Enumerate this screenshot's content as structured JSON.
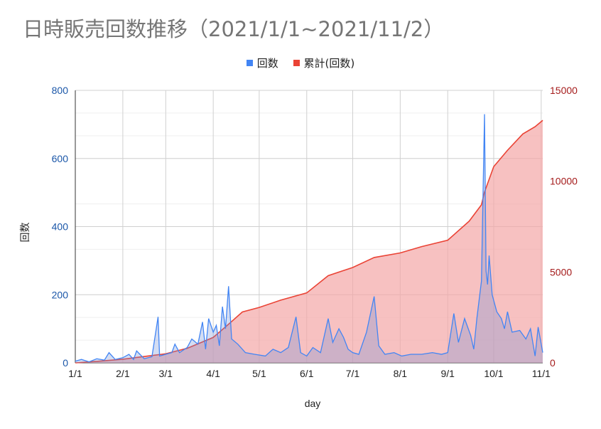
{
  "chart_data": {
    "type": "line",
    "title": "日時販売回数推移（2021/1/1~2021/11/2）",
    "xlabel": "day",
    "ylabel_left": "回数",
    "ylabel_right": "",
    "x_start": "2021-01-01",
    "x_end": "2021-11-02",
    "x_ticks": [
      "1/1",
      "2/1",
      "3/1",
      "4/1",
      "5/1",
      "6/1",
      "7/1",
      "8/1",
      "9/1",
      "10/1",
      "11/1"
    ],
    "ylim_left": [
      0,
      800
    ],
    "yticks_left": [
      "0",
      "200",
      "400",
      "600",
      "800"
    ],
    "ylim_right": [
      0,
      15000
    ],
    "yticks_right": [
      "0",
      "5000",
      "10000",
      "15000"
    ],
    "grid": true,
    "legend_position": "top",
    "series": [
      {
        "name": "回数",
        "axis": "left",
        "type": "line",
        "color": "#4285f4",
        "points": [
          [
            "2021-01-01",
            5
          ],
          [
            "2021-01-05",
            10
          ],
          [
            "2021-01-10",
            3
          ],
          [
            "2021-01-15",
            12
          ],
          [
            "2021-01-20",
            8
          ],
          [
            "2021-01-23",
            30
          ],
          [
            "2021-01-27",
            10
          ],
          [
            "2021-02-01",
            15
          ],
          [
            "2021-02-05",
            25
          ],
          [
            "2021-02-08",
            10
          ],
          [
            "2021-02-10",
            35
          ],
          [
            "2021-02-15",
            12
          ],
          [
            "2021-02-20",
            18
          ],
          [
            "2021-02-24",
            135
          ],
          [
            "2021-02-25",
            20
          ],
          [
            "2021-03-01",
            25
          ],
          [
            "2021-03-05",
            30
          ],
          [
            "2021-03-07",
            55
          ],
          [
            "2021-03-10",
            30
          ],
          [
            "2021-03-15",
            45
          ],
          [
            "2021-03-18",
            70
          ],
          [
            "2021-03-22",
            55
          ],
          [
            "2021-03-25",
            120
          ],
          [
            "2021-03-27",
            40
          ],
          [
            "2021-03-29",
            130
          ],
          [
            "2021-04-01",
            90
          ],
          [
            "2021-04-03",
            110
          ],
          [
            "2021-04-05",
            50
          ],
          [
            "2021-04-07",
            165
          ],
          [
            "2021-04-09",
            100
          ],
          [
            "2021-04-11",
            225
          ],
          [
            "2021-04-13",
            70
          ],
          [
            "2021-04-17",
            55
          ],
          [
            "2021-04-22",
            30
          ],
          [
            "2021-04-28",
            25
          ],
          [
            "2021-05-05",
            20
          ],
          [
            "2021-05-10",
            40
          ],
          [
            "2021-05-15",
            30
          ],
          [
            "2021-05-20",
            45
          ],
          [
            "2021-05-25",
            135
          ],
          [
            "2021-05-28",
            30
          ],
          [
            "2021-06-01",
            20
          ],
          [
            "2021-06-05",
            45
          ],
          [
            "2021-06-10",
            30
          ],
          [
            "2021-06-15",
            130
          ],
          [
            "2021-06-18",
            60
          ],
          [
            "2021-06-22",
            100
          ],
          [
            "2021-06-25",
            75
          ],
          [
            "2021-06-28",
            40
          ],
          [
            "2021-07-01",
            30
          ],
          [
            "2021-07-05",
            25
          ],
          [
            "2021-07-10",
            90
          ],
          [
            "2021-07-15",
            195
          ],
          [
            "2021-07-18",
            50
          ],
          [
            "2021-07-22",
            25
          ],
          [
            "2021-07-28",
            30
          ],
          [
            "2021-08-02",
            20
          ],
          [
            "2021-08-08",
            25
          ],
          [
            "2021-08-15",
            25
          ],
          [
            "2021-08-22",
            30
          ],
          [
            "2021-08-28",
            25
          ],
          [
            "2021-09-01",
            30
          ],
          [
            "2021-09-05",
            145
          ],
          [
            "2021-09-08",
            60
          ],
          [
            "2021-09-12",
            130
          ],
          [
            "2021-09-16",
            80
          ],
          [
            "2021-09-18",
            40
          ],
          [
            "2021-09-20",
            130
          ],
          [
            "2021-09-23",
            240
          ],
          [
            "2021-09-25",
            730
          ],
          [
            "2021-09-26",
            270
          ],
          [
            "2021-09-27",
            230
          ],
          [
            "2021-09-28",
            315
          ],
          [
            "2021-09-30",
            200
          ],
          [
            "2021-10-03",
            150
          ],
          [
            "2021-10-06",
            130
          ],
          [
            "2021-10-08",
            100
          ],
          [
            "2021-10-10",
            150
          ],
          [
            "2021-10-13",
            90
          ],
          [
            "2021-10-18",
            95
          ],
          [
            "2021-10-22",
            70
          ],
          [
            "2021-10-25",
            100
          ],
          [
            "2021-10-28",
            20
          ],
          [
            "2021-10-30",
            105
          ],
          [
            "2021-11-02",
            30
          ]
        ]
      },
      {
        "name": "累計(回数)",
        "axis": "right",
        "type": "area",
        "color": "#ea4335",
        "fill": "#f4a6a6",
        "points": [
          [
            "2021-01-01",
            0
          ],
          [
            "2021-01-15",
            80
          ],
          [
            "2021-02-01",
            200
          ],
          [
            "2021-02-15",
            350
          ],
          [
            "2021-03-01",
            500
          ],
          [
            "2021-03-15",
            800
          ],
          [
            "2021-04-01",
            1400
          ],
          [
            "2021-04-12",
            2200
          ],
          [
            "2021-04-20",
            2800
          ],
          [
            "2021-05-01",
            3050
          ],
          [
            "2021-05-15",
            3450
          ],
          [
            "2021-06-01",
            3850
          ],
          [
            "2021-06-15",
            4800
          ],
          [
            "2021-07-01",
            5250
          ],
          [
            "2021-07-15",
            5800
          ],
          [
            "2021-08-01",
            6050
          ],
          [
            "2021-08-15",
            6400
          ],
          [
            "2021-09-01",
            6750
          ],
          [
            "2021-09-15",
            7800
          ],
          [
            "2021-09-23",
            8700
          ],
          [
            "2021-09-25",
            9400
          ],
          [
            "2021-10-01",
            10800
          ],
          [
            "2021-10-10",
            11700
          ],
          [
            "2021-10-20",
            12600
          ],
          [
            "2021-10-28",
            13000
          ],
          [
            "2021-11-02",
            13350
          ]
        ]
      }
    ]
  }
}
